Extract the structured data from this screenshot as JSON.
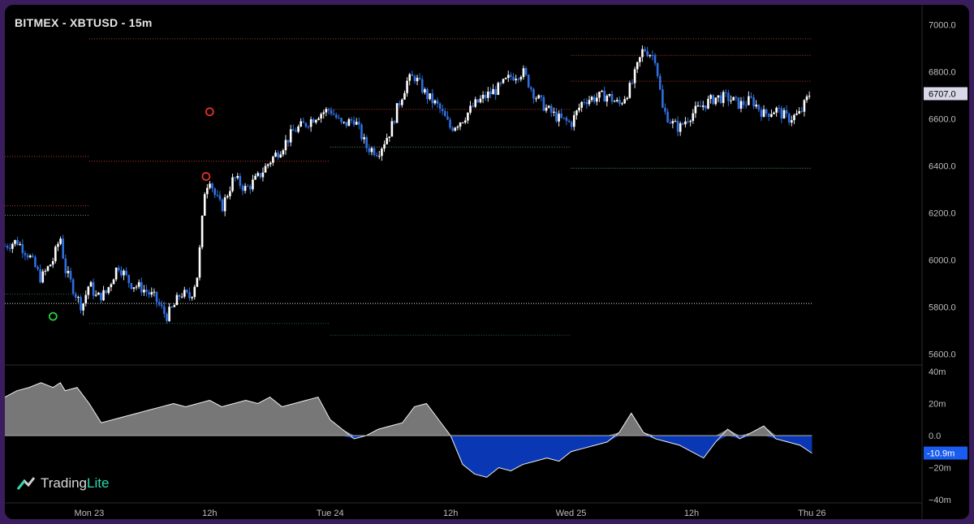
{
  "header": {
    "title": "BITMEX - XBTUSD - 15m"
  },
  "logo": {
    "name_part1": "Trading",
    "name_part2": "Lite"
  },
  "chart_data": [
    {
      "type": "candlestick",
      "title": "BITMEX - XBTUSD - 15m",
      "price_axis": {
        "ticks": [
          "7000.0",
          "6800.0",
          "6600.0",
          "6400.0",
          "6200.0",
          "6000.0",
          "5800.0",
          "5600.0"
        ],
        "tick_values": [
          7000,
          6800,
          6600,
          6400,
          6200,
          6000,
          5800,
          5600
        ],
        "ylim": [
          5550,
          7050
        ]
      },
      "last_price": {
        "label": "6707.0",
        "value": 6707
      },
      "time_axis": {
        "ticks": [
          "Mon 23",
          "12h",
          "Tue 24",
          "12h",
          "Wed 25",
          "12h",
          "Thu 26"
        ],
        "tick_positions_days": [
          0,
          0.5,
          1,
          1.5,
          2,
          2.5,
          3
        ],
        "xlim_days": [
          -0.35,
          3.45
        ]
      },
      "close_series": {
        "t_days": [
          -0.35,
          -0.3,
          -0.25,
          -0.2,
          -0.15,
          -0.12,
          -0.1,
          -0.05,
          -0.03,
          0,
          0.03,
          0.07,
          0.12,
          0.17,
          0.22,
          0.27,
          0.32,
          0.35,
          0.38,
          0.42,
          0.45,
          0.48,
          0.5,
          0.52,
          0.55,
          0.6,
          0.65,
          0.7,
          0.75,
          0.8,
          0.85,
          0.9,
          0.95,
          1,
          1.05,
          1.1,
          1.15,
          1.2,
          1.25,
          1.28,
          1.32,
          1.35,
          1.4,
          1.45,
          1.5,
          1.55,
          1.6,
          1.65,
          1.7,
          1.75,
          1.8,
          1.85,
          1.9,
          1.95,
          2,
          2.05,
          2.1,
          2.15,
          2.2,
          2.25,
          2.3,
          2.35,
          2.38,
          2.42,
          2.45,
          2.48,
          2.5,
          2.55,
          2.6,
          2.65,
          2.7,
          2.75,
          2.8,
          2.85,
          2.9,
          2.95,
          2.99
        ],
        "close": [
          6060,
          6080,
          6020,
          5920,
          6000,
          6100,
          5960,
          5840,
          5800,
          5900,
          5840,
          5860,
          5980,
          5900,
          5880,
          5840,
          5760,
          5800,
          5860,
          5840,
          5940,
          6300,
          6350,
          6280,
          6220,
          6350,
          6300,
          6350,
          6420,
          6480,
          6550,
          6580,
          6620,
          6640,
          6570,
          6600,
          6480,
          6460,
          6550,
          6650,
          6760,
          6780,
          6700,
          6650,
          6560,
          6600,
          6660,
          6700,
          6730,
          6780,
          6800,
          6700,
          6640,
          6600,
          6580,
          6680,
          6690,
          6700,
          6660,
          6740,
          6900,
          6860,
          6640,
          6580,
          6560,
          6600,
          6620,
          6660,
          6690,
          6690,
          6660,
          6680,
          6620,
          6640,
          6600,
          6620,
          6707
        ]
      },
      "signal_markers": [
        {
          "type": "low",
          "color": "#22d33f",
          "t_days": -0.15,
          "price": 5760
        },
        {
          "type": "high",
          "color": "#e03030",
          "t_days": 0.5,
          "price": 6630
        },
        {
          "type": "high",
          "color": "#e03030",
          "t_days": 0.485,
          "price": 6355
        }
      ],
      "levels": [
        {
          "price": 5815,
          "color": "#e8e8e8",
          "from_days": -0.35,
          "to_days": 3.0
        },
        {
          "price": 6440,
          "color": "#b83b30",
          "from_days": -0.35,
          "to_days": 0.0
        },
        {
          "price": 6230,
          "color": "#b83b30",
          "from_days": -0.35,
          "to_days": 0.0
        },
        {
          "price": 6190,
          "color": "#5e9a5e",
          "from_days": -0.35,
          "to_days": 0.0
        },
        {
          "price": 5855,
          "color": "#2e6a3e",
          "from_days": -0.35,
          "to_days": 0.0
        },
        {
          "price": 6940,
          "color": "#b83b30",
          "from_days": 0.0,
          "to_days": 3.0
        },
        {
          "price": 6420,
          "color": "#b83b30",
          "from_days": 0.0,
          "to_days": 1.0
        },
        {
          "price": 5730,
          "color": "#2e6a3e",
          "from_days": 0.0,
          "to_days": 1.0
        },
        {
          "price": 6640,
          "color": "#b83b30",
          "from_days": 1.0,
          "to_days": 2.0
        },
        {
          "price": 6480,
          "color": "#5e9a5e",
          "from_days": 1.0,
          "to_days": 2.0
        },
        {
          "price": 5680,
          "color": "#2e6a3e",
          "from_days": 1.0,
          "to_days": 2.0
        },
        {
          "price": 6870,
          "color": "#b83b30",
          "from_days": 2.0,
          "to_days": 3.0
        },
        {
          "price": 6760,
          "color": "#b83b30",
          "from_days": 2.0,
          "to_days": 3.0
        },
        {
          "price": 6390,
          "color": "#5e9a5e",
          "from_days": 2.0,
          "to_days": 3.0
        }
      ]
    },
    {
      "type": "area",
      "units": "m",
      "axis": {
        "ticks": [
          "40m",
          "20m",
          "0.0",
          "−20m",
          "−40m"
        ],
        "tick_values": [
          40,
          20,
          0,
          -20,
          -40
        ],
        "ylim": [
          -42,
          42
        ]
      },
      "last_value": {
        "label": "-10.9m",
        "value": -10.9
      },
      "colors": {
        "positive": "#8c8c8c",
        "negative": "#0a38b4"
      },
      "series": {
        "t_days": [
          -0.35,
          -0.3,
          -0.25,
          -0.2,
          -0.15,
          -0.12,
          -0.1,
          -0.05,
          0,
          0.05,
          0.1,
          0.15,
          0.2,
          0.25,
          0.3,
          0.35,
          0.4,
          0.45,
          0.5,
          0.55,
          0.6,
          0.65,
          0.7,
          0.75,
          0.8,
          0.85,
          0.9,
          0.95,
          1.0,
          1.05,
          1.1,
          1.15,
          1.2,
          1.25,
          1.3,
          1.35,
          1.4,
          1.45,
          1.5,
          1.55,
          1.6,
          1.65,
          1.7,
          1.75,
          1.8,
          1.85,
          1.9,
          1.95,
          2.0,
          2.05,
          2.1,
          2.15,
          2.2,
          2.25,
          2.3,
          2.35,
          2.4,
          2.45,
          2.5,
          2.55,
          2.6,
          2.65,
          2.7,
          2.75,
          2.8,
          2.85,
          2.9,
          2.95,
          3.0
        ],
        "values": [
          24,
          28,
          30,
          33,
          30,
          33,
          28,
          30,
          20,
          8,
          10,
          12,
          14,
          16,
          18,
          20,
          18,
          20,
          22,
          18,
          20,
          22,
          20,
          24,
          18,
          20,
          22,
          24,
          10,
          4,
          -2,
          0,
          4,
          6,
          8,
          18,
          20,
          10,
          0,
          -18,
          -24,
          -26,
          -20,
          -22,
          -18,
          -16,
          -14,
          -16,
          -10,
          -8,
          -6,
          -4,
          2,
          14,
          2,
          -2,
          -4,
          -6,
          -10,
          -14,
          -4,
          4,
          -2,
          2,
          6,
          -2,
          -4,
          -6,
          -11
        ]
      }
    }
  ]
}
